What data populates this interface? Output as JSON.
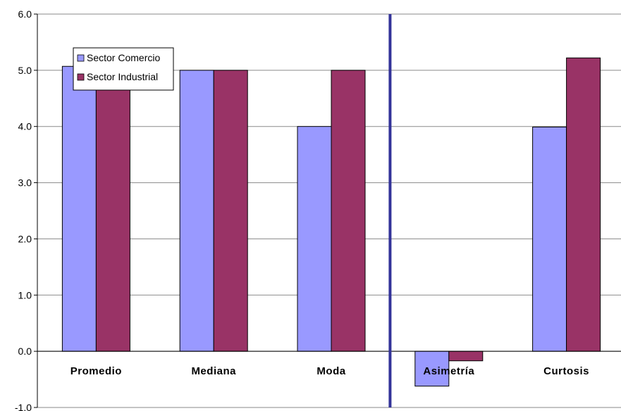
{
  "chart_data": {
    "type": "bar",
    "categories": [
      "Promedio",
      "Mediana",
      "Moda",
      "Asimetría",
      "Curtosis"
    ],
    "series": [
      {
        "name": "Sector Comercio",
        "color": "#9999ff",
        "values": [
          5.07,
          5.0,
          4.0,
          -0.62,
          3.99
        ]
      },
      {
        "name": "Sector Industrial",
        "color": "#993366",
        "values": [
          4.8,
          5.0,
          5.0,
          -0.17,
          5.22
        ]
      }
    ],
    "y_ticks": [
      "6.0",
      "5.0",
      "4.0",
      "3.0",
      "2.0",
      "1.0",
      "0.0",
      "-1.0"
    ],
    "ylim": [
      -1,
      6
    ],
    "grid": true,
    "legend_position": "top-left",
    "divider_color": "#333399",
    "title": "",
    "xlabel": "",
    "ylabel": ""
  }
}
